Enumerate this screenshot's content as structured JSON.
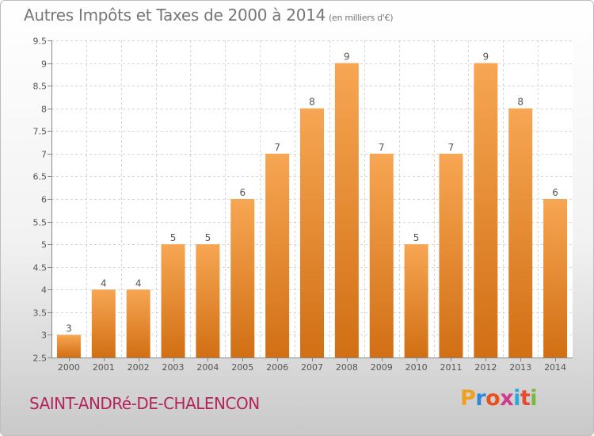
{
  "header": {
    "title": "Autres Impôts et Taxes de 2000 à 2014",
    "unit": "(en milliers d'€)"
  },
  "footer": {
    "commune": "SAINT-ANDRé-DE-CHALENCON",
    "logo_letters": [
      "P",
      "r",
      "o",
      "x",
      "i",
      "t",
      "i"
    ],
    "logo_colors": [
      "#f0a020",
      "#2e8ad8",
      "#e8501e",
      "#d03a8c",
      "#2aa9e0",
      "#e84c2a",
      "#7cb540"
    ]
  },
  "chart_data": {
    "type": "bar",
    "categories": [
      "2000",
      "2001",
      "2002",
      "2003",
      "2004",
      "2005",
      "2006",
      "2007",
      "2008",
      "2009",
      "2010",
      "2011",
      "2012",
      "2013",
      "2014"
    ],
    "values": [
      3,
      4,
      4,
      5,
      5,
      6,
      7,
      8,
      9,
      7,
      5,
      7,
      9,
      8,
      6
    ],
    "data_labels": [
      "3",
      "4",
      "4",
      "5",
      "5",
      "6",
      "7",
      "8",
      "9",
      "7",
      "5",
      "7",
      "9",
      "8",
      "6"
    ],
    "title": "Autres Impôts et Taxes de 2000 à 2014",
    "xlabel": "",
    "ylabel": "",
    "ylim": [
      2.5,
      9.5
    ],
    "yticks": [
      2.5,
      3,
      3.5,
      4,
      4.5,
      5,
      5.5,
      6,
      6.5,
      7,
      7.5,
      8,
      8.5,
      9,
      9.5
    ],
    "ytick_labels": [
      "2.5",
      "3",
      "3.5",
      "4",
      "4.5",
      "5",
      "5.5",
      "6",
      "6.5",
      "7",
      "7.5",
      "8",
      "8.5",
      "9",
      "9.5"
    ],
    "grid": true,
    "bar_color_top": "#f7a653",
    "bar_color_bottom": "#d16f14"
  }
}
